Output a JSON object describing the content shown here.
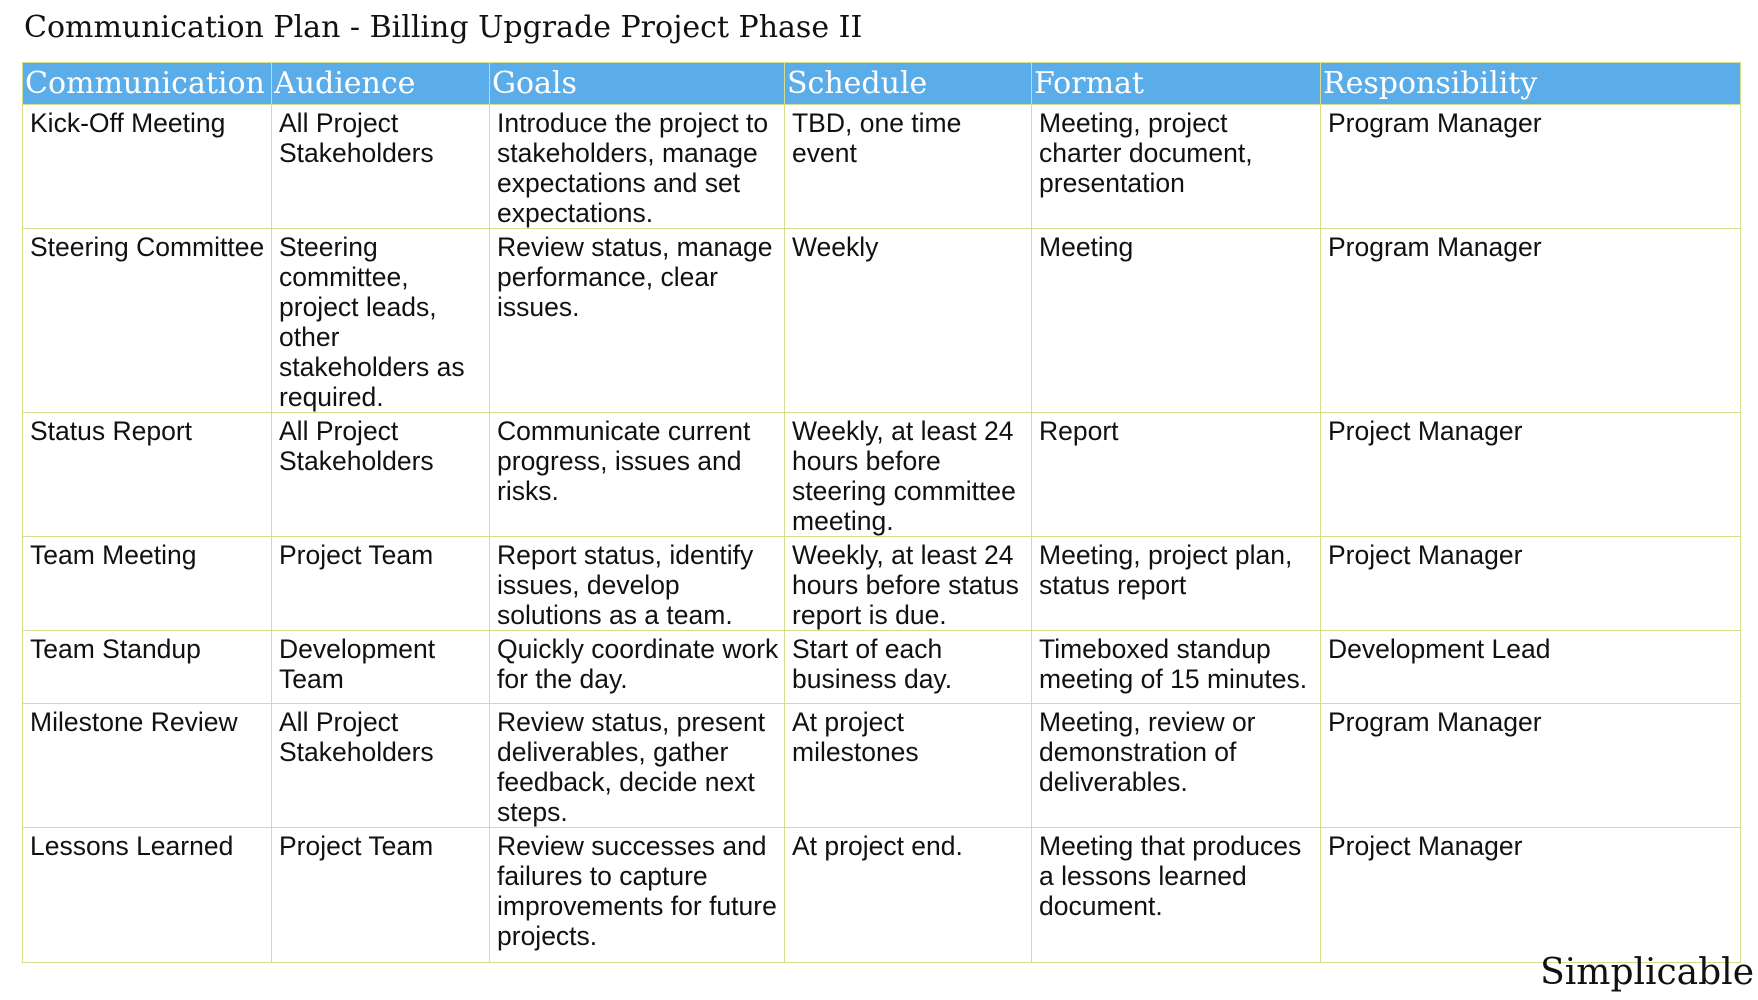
{
  "title": "Communication Plan - Billing Upgrade Project Phase II",
  "table": {
    "headers": [
      "Communication",
      "Audience",
      "Goals",
      "Schedule",
      "Format",
      "Responsibility"
    ],
    "rows": [
      {
        "communication": "Kick-Off Meeting",
        "audience": "All Project Stakeholders",
        "goals": "Introduce the project to stakeholders, manage expectations and set expectations.",
        "schedule": "TBD, one time event",
        "format": "Meeting, project charter document, presentation",
        "responsibility": "Program Manager"
      },
      {
        "communication": "Steering Committee",
        "audience": "Steering committee, project leads, other stakeholders as required.",
        "goals": "Review status, manage performance, clear issues.",
        "schedule": "Weekly",
        "format": "Meeting",
        "responsibility": "Program Manager"
      },
      {
        "communication": "Status Report",
        "audience": "All Project Stakeholders",
        "goals": "Communicate current progress, issues and risks.",
        "schedule": "Weekly, at least 24 hours before steering committee meeting.",
        "format": "Report",
        "responsibility": "Project Manager"
      },
      {
        "communication": "Team Meeting",
        "audience": "Project Team",
        "goals": "Report status, identify issues, develop solutions as a team.",
        "schedule": "Weekly, at least 24 hours before status report is due.",
        "format": "Meeting, project plan, status report",
        "responsibility": "Project Manager"
      },
      {
        "communication": "Team Standup",
        "audience": "Development Team",
        "goals": "Quickly coordinate work for the day.",
        "schedule": "Start of each business day.",
        "format": "Timeboxed standup meeting of 15 minutes.",
        "responsibility": "Development Lead"
      },
      {
        "communication": "Milestone Review",
        "audience": "All Project Stakeholders",
        "goals": "Review status, present deliverables, gather feedback, decide next steps.",
        "schedule": "At project milestones",
        "format": "Meeting, review or demonstration of deliverables.",
        "responsibility": "Program Manager"
      },
      {
        "communication": "Lessons Learned",
        "audience": "Project Team",
        "goals": "Review successes and failures to capture improvements for future projects.",
        "schedule": "At project end.",
        "format": "Meeting that produces a lessons learned document.",
        "responsibility": "Project Manager"
      }
    ]
  },
  "watermark": "Simplicable",
  "colors": {
    "header_bg": "#5badea",
    "header_text": "#ffffff",
    "border": "#d4de8c"
  }
}
